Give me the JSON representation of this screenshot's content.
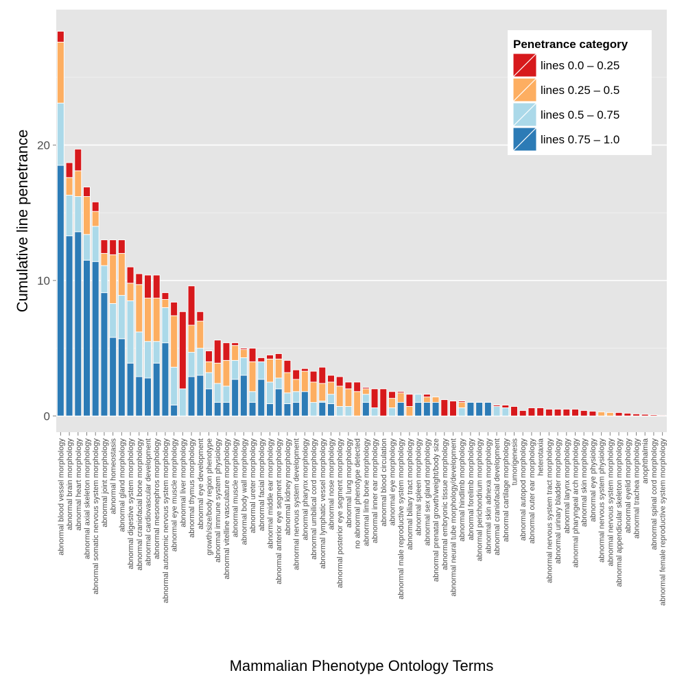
{
  "chart_data": {
    "type": "bar",
    "stacked": true,
    "xlabel": "Mammalian Phenotype Ontology Terms",
    "ylabel": "Cumulative line penetrance",
    "ylim": [
      -1.2,
      30
    ],
    "yticks": [
      0,
      10,
      20
    ],
    "grid": true,
    "legend": {
      "title": "Penetrance category",
      "placement": "top-right"
    },
    "categories": [
      "abnormal blood vessel morphology",
      "abnormal brain morphology",
      "abnormal heart morphology",
      "abnormal axial skeleton morphology",
      "abnormal somatic nervous system morphology",
      "abnormal joint morphology",
      "abnormal homeostasis",
      "abnormal gland morphology",
      "abnormal digestive system morphology",
      "abnormal craniofacial bone morphology",
      "abnormal cardiovascular development",
      "abnormal mesonephros morphology",
      "abnormal autonomic nervous system morphology",
      "abnormal eye muscle morphology",
      "abnormal liver morphology",
      "abnormal thymus morphology",
      "abnormal eye development",
      "growth/size/body region phenotype",
      "abnormal immune system physiology",
      "abnormal vitelline vasculature morphology",
      "abnormal muscle morphology",
      "abnormal body wall morphology",
      "abnormal ureter morphology",
      "abnormal facial morphology",
      "abnormal middle ear morphology",
      "abnormal anterior eye segment morphology",
      "abnormal kidney morphology",
      "abnormal nervous system development",
      "abnormal pharynx morphology",
      "abnormal umbilical cord morphology",
      "abnormal lymphatic vessel morphology",
      "abnormal nose morphology",
      "abnormal posterior eye segment morphology",
      "abnormal lung morphology",
      "no abnormal phenotype detected",
      "abnormal limb bone morphology",
      "abnormal inner ear morphology",
      "abnormal blood circulation",
      "abnormal eye morphology",
      "abnormal male reproductive system morphology",
      "abnormal biliary tract morphology",
      "abnormal spleen morphology",
      "abnormal sex gland morphology",
      "abnormal prenatal growth/weight/body size",
      "abnormal embryonic tissue morphology",
      "abnormal neural tube morphology/development",
      "abnormal hindlimb morphology",
      "abnormal forelimb morphology",
      "abnormal perichondrium morphology",
      "abnormal skin adnexa morphology",
      "abnormal craniofacial development",
      "abnormal cartilage morphology",
      "tumorigenesis",
      "abnormal autopod morphology",
      "abnormal outer ear morphology",
      "heterotaxia",
      "abnormal nervous system tract morphology",
      "abnormal urinary bladder morphology",
      "abnormal larynx morphology",
      "abnormal pharyngeal arch morphology",
      "abnormal skin morphology",
      "abnormal eye physiology",
      "abnormal nervous system physiology",
      "abnormal nervous system morphology",
      "abnormal appendicular skeleton morphology",
      "abnormal eyelid morphology",
      "abnormal trachea morphology",
      "anophthalmia",
      "abnormal spinal cord morphology",
      "abnormal female reproductive system morphology"
    ],
    "series": [
      {
        "name": "lines 0.75 – 1.0",
        "color": "#2c7bb6",
        "values": [
          18.5,
          13.3,
          13.6,
          11.5,
          11.4,
          9.1,
          5.8,
          5.7,
          3.9,
          2.9,
          2.8,
          3.9,
          5.4,
          0.8,
          0,
          2.9,
          3.0,
          2.0,
          1.0,
          1.0,
          2.7,
          3.0,
          1.0,
          2.7,
          0.9,
          2.0,
          0.9,
          1.0,
          1.8,
          0,
          1.0,
          0.9,
          0,
          0,
          0,
          1.0,
          0,
          0,
          0,
          1.0,
          0,
          1.0,
          1.0,
          1.0,
          0,
          0,
          0,
          1.0,
          1.0,
          1.0,
          0,
          0,
          0,
          0,
          0,
          0,
          0,
          0,
          0,
          0,
          0,
          0,
          0,
          0,
          0,
          0,
          0,
          0,
          0,
          0
        ]
      },
      {
        "name": "lines 0.5 – 0.75",
        "color": "#abd9e9",
        "values": [
          4.6,
          3.0,
          2.6,
          1.9,
          2.6,
          2.0,
          2.5,
          3.2,
          4.6,
          3.3,
          2.7,
          1.6,
          2.6,
          2.8,
          2.0,
          1.8,
          2.0,
          1.2,
          1.4,
          1.2,
          1.4,
          1.3,
          0.8,
          1.3,
          1.6,
          0.8,
          0.8,
          0.8,
          0,
          1.0,
          0.1,
          0.7,
          0.7,
          0.7,
          0,
          0.6,
          0.6,
          0,
          0.6,
          0,
          0,
          0.6,
          0,
          0,
          0,
          0,
          0.6,
          0,
          0,
          0,
          0.7,
          0.6,
          0,
          0,
          0,
          0,
          0,
          0,
          0,
          0,
          0,
          0,
          0,
          0,
          0,
          0,
          0,
          0,
          0,
          0
        ]
      },
      {
        "name": "lines 0.25 – 0.5",
        "color": "#fdae61",
        "values": [
          4.5,
          1.3,
          1.9,
          2.8,
          1.1,
          0.9,
          3.6,
          3.1,
          1.3,
          3.5,
          3.2,
          3.2,
          0.6,
          3.8,
          0,
          2.0,
          2.0,
          0.8,
          1.5,
          1.9,
          1.1,
          0.6,
          2.2,
          0,
          1.7,
          1.4,
          1.5,
          0.9,
          1.5,
          1.5,
          1.3,
          0.9,
          1.5,
          1.3,
          1.8,
          0.4,
          0,
          0,
          0.7,
          0.7,
          0.7,
          0,
          0.4,
          0.4,
          0,
          0,
          0.4,
          0,
          0,
          0,
          0,
          0,
          0,
          0,
          0,
          0,
          0,
          0,
          0,
          0,
          0,
          0,
          0.3,
          0.25,
          0,
          0,
          0,
          0,
          0,
          0
        ]
      },
      {
        "name": "lines 0.0 – 0.25",
        "color": "#d7191c",
        "values": [
          0.8,
          1.1,
          1.6,
          0.7,
          0.7,
          1.0,
          1.1,
          1.0,
          1.2,
          0.8,
          1.7,
          1.7,
          0.5,
          1.0,
          5.7,
          2.9,
          0.7,
          0.8,
          1.7,
          1.3,
          0.2,
          0.1,
          1.0,
          0.3,
          0.3,
          0.4,
          0.9,
          0.7,
          0.2,
          0.8,
          1.2,
          0.5,
          0.7,
          0.5,
          0.7,
          0.1,
          1.4,
          2.0,
          0.5,
          0.1,
          0.9,
          0,
          0.2,
          0,
          1.2,
          1.1,
          0.1,
          0,
          0,
          0,
          0.1,
          0.2,
          0.7,
          0.4,
          0.6,
          0.6,
          0.5,
          0.5,
          0.5,
          0.5,
          0.4,
          0.35,
          0,
          0,
          0.25,
          0.2,
          0.15,
          0.12,
          0.08,
          0.05
        ]
      }
    ]
  }
}
